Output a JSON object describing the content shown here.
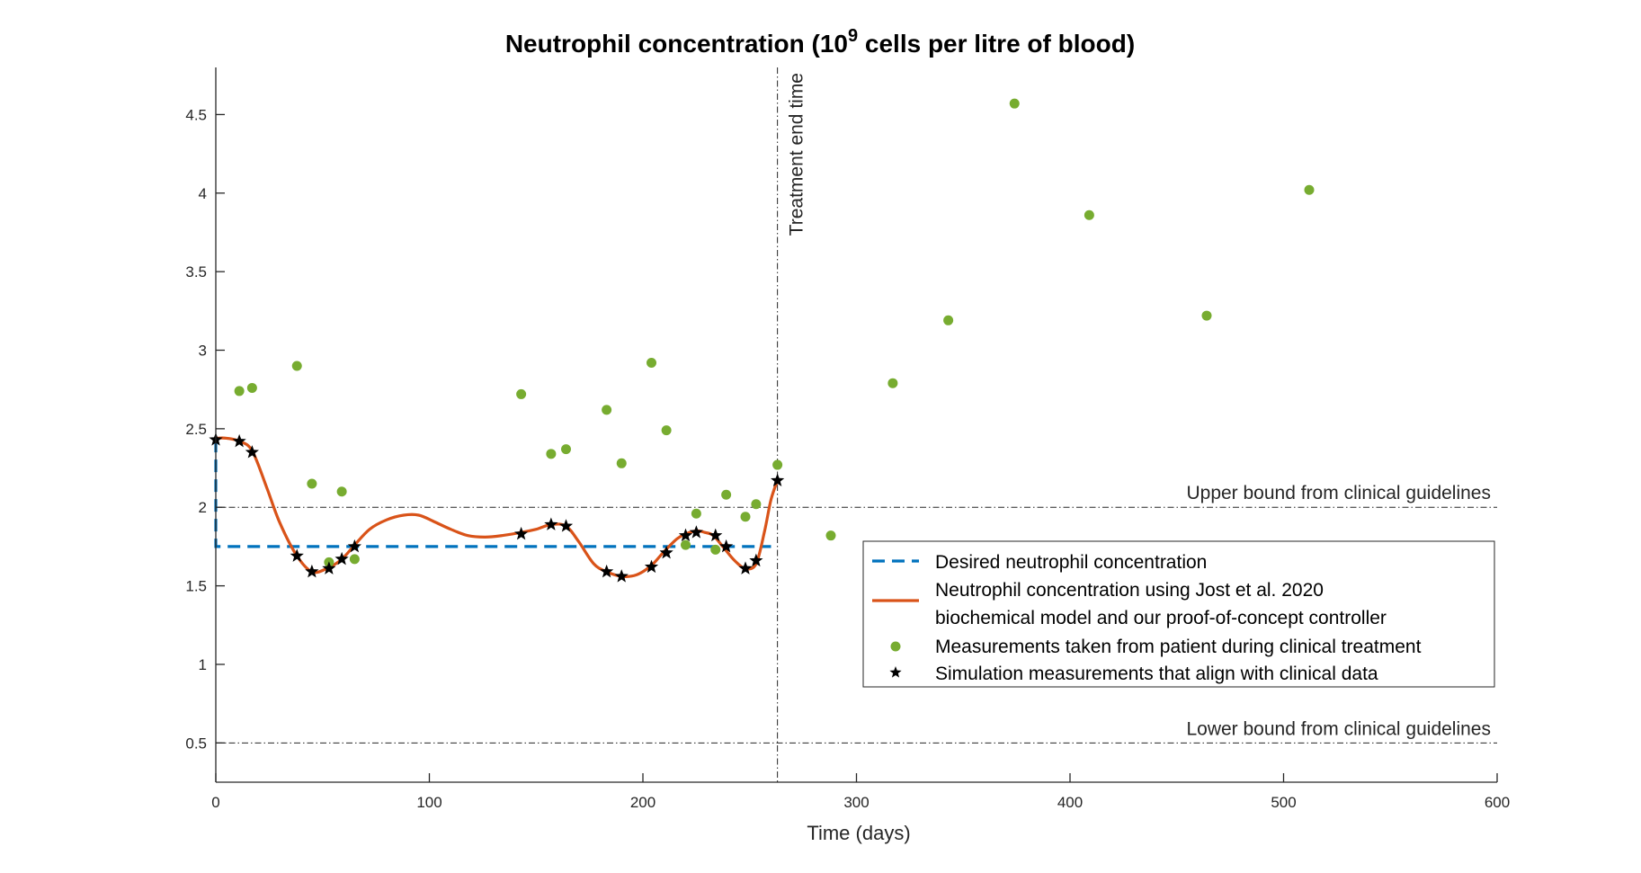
{
  "chart_data": {
    "type": "line",
    "title_main": "Neutrophil concentration (10",
    "title_sup": "9",
    "title_rest": " cells per litre of blood)",
    "xlabel": "Time (days)",
    "ylabel": "",
    "xlim": [
      0,
      600
    ],
    "ylim": [
      0.25,
      4.8
    ],
    "xticks": [
      0,
      100,
      200,
      300,
      400,
      500,
      600
    ],
    "yticks": [
      0.5,
      1,
      1.5,
      2,
      2.5,
      3,
      3.5,
      4,
      4.5
    ],
    "xtick_labels": [
      "0",
      "100",
      "200",
      "300",
      "400",
      "500",
      "600"
    ],
    "ytick_labels": [
      "0.5",
      "1",
      "1.5",
      "2",
      "2.5",
      "3",
      "3.5",
      "4",
      "4.5"
    ],
    "grid": false,
    "legend_position": "right",
    "annotations": {
      "treatment_end": {
        "x": 263,
        "label": "Treatment end time"
      },
      "upper_bound": {
        "y": 2.0,
        "label": "Upper bound from clinical guidelines"
      },
      "lower_bound": {
        "y": 0.5,
        "label": "Lower bound from clinical guidelines"
      }
    },
    "colors": {
      "desired": "#0072BD",
      "model": "#D95319",
      "measurements": "#77AC30",
      "simulation": "#000000",
      "reference_lines": "#262626"
    },
    "series": [
      {
        "name": "Desired neutrophil concentration",
        "style": "dashed",
        "x": [
          0,
          0,
          260
        ],
        "y": [
          2.43,
          1.75,
          1.75
        ]
      },
      {
        "name_lines": [
          "Neutrophil concentration using Jost et al. 2020",
          "biochemical model and our proof-of-concept controller"
        ],
        "style": "solid",
        "x": [
          0,
          5,
          11,
          17,
          24,
          30,
          38,
          45,
          52,
          59,
          65,
          72,
          80,
          88,
          95,
          102,
          110,
          118,
          126,
          134,
          143,
          150,
          157,
          164,
          170,
          177,
          183,
          190,
          197,
          204,
          210,
          216,
          220,
          225,
          229,
          233,
          238,
          243,
          248,
          253,
          257,
          260,
          263
        ],
        "y": [
          2.44,
          2.44,
          2.42,
          2.36,
          2.12,
          1.9,
          1.69,
          1.59,
          1.61,
          1.67,
          1.76,
          1.86,
          1.92,
          1.95,
          1.95,
          1.91,
          1.86,
          1.82,
          1.81,
          1.82,
          1.84,
          1.86,
          1.89,
          1.88,
          1.78,
          1.64,
          1.59,
          1.56,
          1.57,
          1.63,
          1.72,
          1.8,
          1.83,
          1.85,
          1.84,
          1.82,
          1.74,
          1.66,
          1.61,
          1.64,
          1.85,
          2.05,
          2.17
        ]
      },
      {
        "name": "Measurements taken from patient during clinical treatment",
        "style": "markers-dot",
        "x": [
          11,
          17,
          38,
          45,
          53,
          59,
          65,
          143,
          157,
          164,
          183,
          190,
          204,
          211,
          220,
          225,
          234,
          239,
          248,
          253,
          263,
          288,
          317,
          343,
          374,
          409,
          464,
          512
        ],
        "y": [
          2.74,
          2.76,
          2.9,
          2.15,
          1.65,
          2.1,
          1.67,
          2.72,
          2.34,
          2.37,
          2.62,
          2.28,
          2.92,
          2.49,
          1.76,
          1.96,
          1.73,
          2.08,
          1.94,
          2.02,
          2.27,
          1.82,
          2.79,
          3.19,
          4.57,
          3.86,
          3.22,
          4.02
        ]
      },
      {
        "name": "Simulation measurements that align with clinical data",
        "style": "markers-star",
        "x": [
          0,
          11,
          17,
          38,
          45,
          53,
          59,
          65,
          143,
          157,
          164,
          183,
          190,
          204,
          211,
          220,
          225,
          234,
          239,
          248,
          253,
          263
        ],
        "y": [
          2.43,
          2.42,
          2.35,
          1.69,
          1.59,
          1.61,
          1.67,
          1.75,
          1.83,
          1.89,
          1.88,
          1.59,
          1.56,
          1.62,
          1.71,
          1.82,
          1.84,
          1.82,
          1.75,
          1.61,
          1.66,
          2.17
        ]
      }
    ]
  }
}
